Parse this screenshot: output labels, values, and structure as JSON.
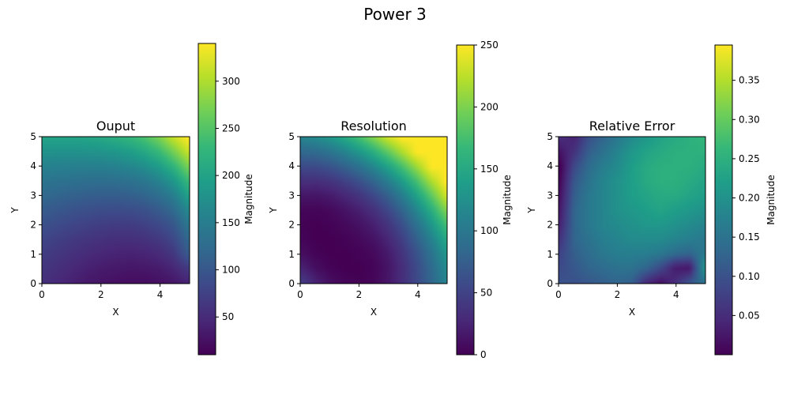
{
  "figure": {
    "title": "Power 3"
  },
  "viridis": [
    "#440154",
    "#482878",
    "#3e4989",
    "#31688e",
    "#26828e",
    "#1f9e89",
    "#35b779",
    "#6ece58",
    "#b5de2b",
    "#fde725"
  ],
  "chart_data": [
    {
      "type": "heatmap",
      "title": "Ouput",
      "xlabel": "X",
      "ylabel": "Y",
      "xlim": [
        0,
        5
      ],
      "ylim": [
        0,
        5
      ],
      "x_ticks": [
        "0",
        "2",
        "4"
      ],
      "y_ticks": [
        "0",
        "1",
        "2",
        "3",
        "4",
        "5"
      ],
      "colorbar": {
        "label": "Magnitude",
        "range": [
          10,
          340
        ],
        "ticks": [
          "50",
          "100",
          "150",
          "200",
          "250",
          "300"
        ]
      },
      "grid": [
        [
          56,
          48,
          40,
          33,
          28,
          24,
          22,
          22,
          25,
          31,
          43
        ],
        [
          62,
          55,
          48,
          41,
          36,
          33,
          31,
          32,
          36,
          46,
          68
        ],
        [
          70,
          63,
          57,
          51,
          46,
          43,
          42,
          44,
          50,
          64,
          105
        ],
        [
          80,
          73,
          67,
          62,
          58,
          55,
          55,
          58,
          66,
          82,
          120
        ],
        [
          92,
          86,
          80,
          75,
          71,
          69,
          70,
          74,
          84,
          100,
          140
        ],
        [
          106,
          100,
          95,
          91,
          88,
          87,
          88,
          93,
          104,
          122,
          165
        ],
        [
          121,
          116,
          112,
          109,
          107,
          107,
          110,
          116,
          128,
          150,
          195
        ],
        [
          138,
          134,
          131,
          129,
          128,
          129,
          133,
          141,
          156,
          182,
          230
        ],
        [
          156,
          153,
          152,
          151,
          152,
          155,
          161,
          171,
          190,
          222,
          270
        ],
        [
          176,
          175,
          175,
          176,
          178,
          183,
          191,
          205,
          228,
          266,
          310
        ],
        [
          200,
          200,
          200,
          202,
          207,
          214,
          225,
          242,
          270,
          310,
          340
        ]
      ]
    },
    {
      "type": "heatmap",
      "title": "Resolution",
      "xlabel": "X",
      "ylabel": "Y",
      "xlim": [
        0,
        5
      ],
      "ylim": [
        0,
        5
      ],
      "x_ticks": [
        "0",
        "2",
        "4"
      ],
      "y_ticks": [
        "0",
        "1",
        "2",
        "3",
        "4",
        "5"
      ],
      "colorbar": {
        "label": "Magnitude",
        "range": [
          0,
          250
        ],
        "ticks": [
          "0",
          "50",
          "100",
          "150",
          "200",
          "250"
        ]
      },
      "grid": [
        [
          45,
          23,
          9,
          3,
          1,
          4,
          15,
          33,
          56,
          82,
          111
        ],
        [
          23,
          9,
          2,
          0,
          0,
          3,
          14,
          33,
          57,
          86,
          118
        ],
        [
          9,
          2,
          0,
          0,
          2,
          6,
          18,
          38,
          64,
          95,
          130
        ],
        [
          3,
          0,
          0,
          2,
          6,
          13,
          27,
          48,
          77,
          110,
          148
        ],
        [
          1,
          0,
          2,
          6,
          12,
          22,
          38,
          62,
          93,
          130,
          172
        ],
        [
          4,
          3,
          6,
          13,
          22,
          35,
          54,
          81,
          115,
          155,
          200
        ],
        [
          15,
          14,
          18,
          27,
          38,
          54,
          76,
          106,
          142,
          185,
          230
        ],
        [
          33,
          33,
          38,
          48,
          62,
          81,
          106,
          137,
          175,
          218,
          250
        ],
        [
          56,
          57,
          64,
          77,
          93,
          115,
          142,
          175,
          212,
          250,
          250
        ],
        [
          82,
          86,
          95,
          110,
          130,
          155,
          185,
          218,
          250,
          250,
          250
        ],
        [
          111,
          118,
          130,
          148,
          172,
          200,
          230,
          250,
          250,
          250,
          250
        ]
      ]
    },
    {
      "type": "heatmap",
      "title": "Relative Error",
      "xlabel": "X",
      "ylabel": "Y",
      "xlim": [
        0,
        5
      ],
      "ylim": [
        0,
        5
      ],
      "x_ticks": [
        "0",
        "2",
        "4"
      ],
      "y_ticks": [
        "0",
        "1",
        "2",
        "3",
        "4",
        "5"
      ],
      "colorbar": {
        "label": "Magnitude",
        "range": [
          0,
          0.395
        ],
        "ticks": [
          "0.05",
          "0.10",
          "0.15",
          "0.20",
          "0.25",
          "0.30",
          "0.35"
        ]
      },
      "grid": [
        [
          0.1,
          0.1,
          0.11,
          0.12,
          0.13,
          0.12,
          0.05,
          0.02,
          0.05,
          0.1,
          0.15
        ],
        [
          0.09,
          0.11,
          0.13,
          0.14,
          0.15,
          0.15,
          0.13,
          0.09,
          0.03,
          0.02,
          0.2
        ],
        [
          0.08,
          0.12,
          0.14,
          0.16,
          0.17,
          0.17,
          0.17,
          0.16,
          0.14,
          0.13,
          0.16
        ],
        [
          0.06,
          0.13,
          0.15,
          0.17,
          0.18,
          0.19,
          0.19,
          0.19,
          0.18,
          0.17,
          0.16
        ],
        [
          0.04,
          0.13,
          0.16,
          0.18,
          0.19,
          0.2,
          0.21,
          0.21,
          0.2,
          0.19,
          0.18
        ],
        [
          0.03,
          0.13,
          0.16,
          0.18,
          0.2,
          0.21,
          0.22,
          0.23,
          0.22,
          0.21,
          0.2
        ],
        [
          0.02,
          0.12,
          0.16,
          0.18,
          0.2,
          0.22,
          0.23,
          0.24,
          0.24,
          0.23,
          0.22
        ],
        [
          0.01,
          0.11,
          0.15,
          0.18,
          0.2,
          0.22,
          0.24,
          0.25,
          0.25,
          0.24,
          0.23
        ],
        [
          0.0,
          0.09,
          0.14,
          0.17,
          0.19,
          0.22,
          0.24,
          0.25,
          0.25,
          0.25,
          0.24
        ],
        [
          0.02,
          0.06,
          0.12,
          0.15,
          0.18,
          0.21,
          0.23,
          0.24,
          0.25,
          0.25,
          0.25
        ],
        [
          0.05,
          0.04,
          0.1,
          0.13,
          0.16,
          0.19,
          0.21,
          0.23,
          0.24,
          0.25,
          0.26
        ]
      ]
    }
  ]
}
